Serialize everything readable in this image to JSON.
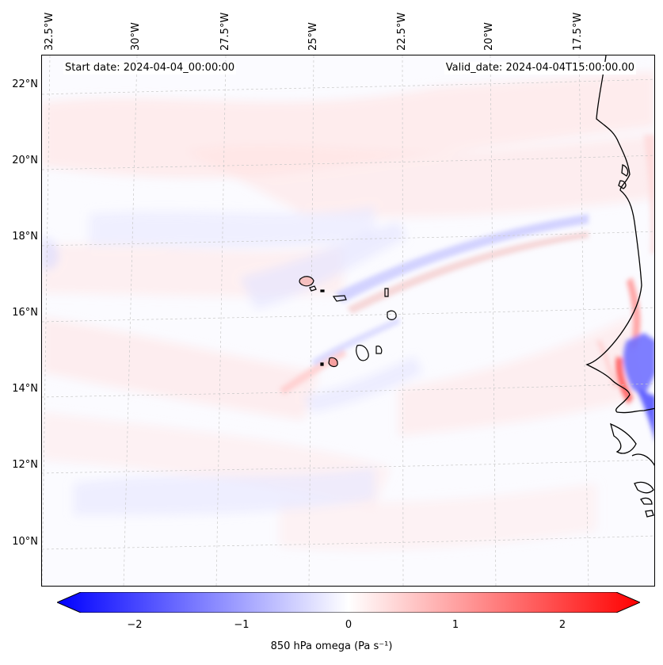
{
  "map": {
    "start_date": "Start date: 2024-04-04_00:00:00",
    "valid_date": "Valid_date: 2024-04-04T15:00:00.00",
    "variable": "850 hPa omega (Pa s⁻¹)",
    "lon_labels": [
      "32.5°W",
      "30°W",
      "27.5°W",
      "25°W",
      "22.5°W",
      "20°W",
      "17.5°W"
    ],
    "lat_labels": [
      "22°N",
      "20°N",
      "18°N",
      "16°N",
      "14°N",
      "12°N",
      "10°N"
    ],
    "extent": {
      "lon_min": -33.0,
      "lon_max": -16.0,
      "lat_min": 9.0,
      "lat_max": 22.8
    },
    "regions": [
      "Cabo Verde islands",
      "West African coast (Mauritania, Senegal, Gambia, Guinea-Bissau)"
    ]
  },
  "colorbar": {
    "ticks": [
      "−2",
      "−1",
      "0",
      "1",
      "2"
    ],
    "tick_values": [
      -2,
      -1,
      0,
      1,
      2
    ],
    "range": [
      -2.5,
      2.5
    ],
    "min_color": "#0000ff",
    "mid_color": "#ffffff",
    "max_color": "#ff0000",
    "extend": "both"
  },
  "colors": {
    "coastline": "#000000",
    "gridline": "#c8c8c8"
  }
}
